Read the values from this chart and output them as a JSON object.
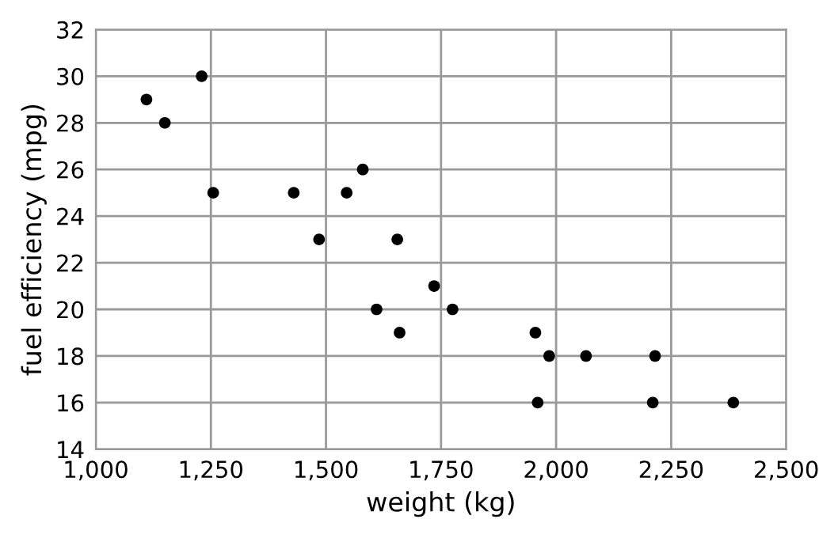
{
  "chart_data": {
    "type": "scatter",
    "xlabel": "weight (kg)",
    "ylabel": "fuel efficiency (mpg)",
    "x": [
      1110,
      1150,
      1230,
      1255,
      1430,
      1485,
      1545,
      1580,
      1610,
      1655,
      1660,
      1735,
      1775,
      1955,
      1985,
      1960,
      2065,
      2215,
      2210,
      2385
    ],
    "values": [
      29,
      28,
      30,
      25,
      25,
      23,
      25,
      26,
      20,
      23,
      19,
      21,
      20,
      19,
      18,
      16,
      18,
      18,
      16,
      16
    ],
    "color": "#000000",
    "marker": "circle",
    "grid": true,
    "xlim": [
      1000,
      2500
    ],
    "xticks": [
      {
        "value": 1000,
        "label": "1,000"
      },
      {
        "value": 1250,
        "label": "1,250"
      },
      {
        "value": 1500,
        "label": "1,500"
      },
      {
        "value": 1750,
        "label": "1,750"
      },
      {
        "value": 2000,
        "label": "2,000"
      },
      {
        "value": 2250,
        "label": "2,250"
      },
      {
        "value": 2500,
        "label": "2,500"
      }
    ],
    "ylim": [
      14,
      32
    ],
    "yticks": [
      14,
      16,
      18,
      20,
      22,
      24,
      26,
      28,
      30,
      32
    ]
  }
}
